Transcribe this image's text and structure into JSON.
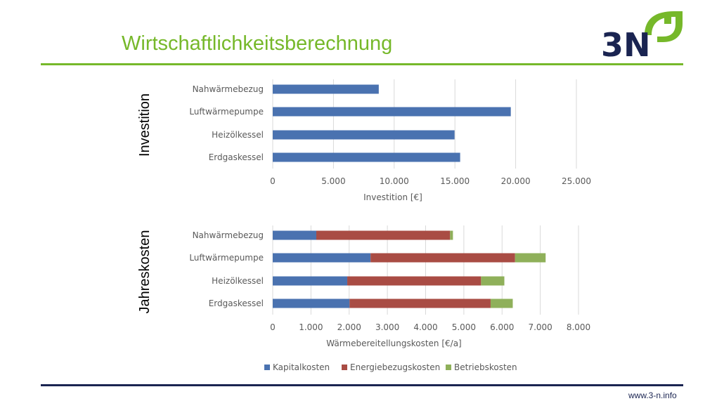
{
  "header": {
    "title": "Wirtschaftlichkeitsberechnung",
    "logo_text": "3N"
  },
  "footer": {
    "url": "www.3-n.info"
  },
  "colors": {
    "kapital": "#4a72b0",
    "energie": "#a94c44",
    "betrieb": "#8fb05a",
    "accent": "#76b82a",
    "navy": "#1a2451"
  },
  "chart_data": [
    {
      "type": "bar",
      "orientation": "horizontal",
      "side_label": "Investition",
      "xlabel": "Investition [€]",
      "categories": [
        "Nahwärmebezug",
        "Luftwärmepumpe",
        "Heizölkessel",
        "Erdgaskessel"
      ],
      "values": [
        8730,
        19600,
        14970,
        15430
      ],
      "xlim": [
        0,
        25000
      ],
      "ticks": [
        "0",
        "5.000",
        "10.000",
        "15.000",
        "20.000",
        "25.000"
      ],
      "grid": true
    },
    {
      "type": "bar",
      "orientation": "horizontal",
      "stacked": true,
      "side_label": "Jahreskosten",
      "xlabel": "Wärmebereitellungskosten [€/a]",
      "categories": [
        "Nahwärmebezug",
        "Luftwärmepumpe",
        "Heizölkessel",
        "Erdgaskessel"
      ],
      "series": [
        {
          "name": "Kapitalkosten",
          "values": [
            1140,
            2560,
            1950,
            2010
          ]
        },
        {
          "name": "Energiebezugskosten",
          "values": [
            3500,
            3780,
            3500,
            3690
          ]
        },
        {
          "name": "Betriebskosten",
          "values": [
            75,
            800,
            610,
            580
          ]
        }
      ],
      "xlim": [
        0,
        8000
      ],
      "ticks": [
        "0",
        "1.000",
        "2.000",
        "3.000",
        "4.000",
        "5.000",
        "6.000",
        "7.000",
        "8.000"
      ],
      "grid": true,
      "legend": "bottom"
    }
  ]
}
